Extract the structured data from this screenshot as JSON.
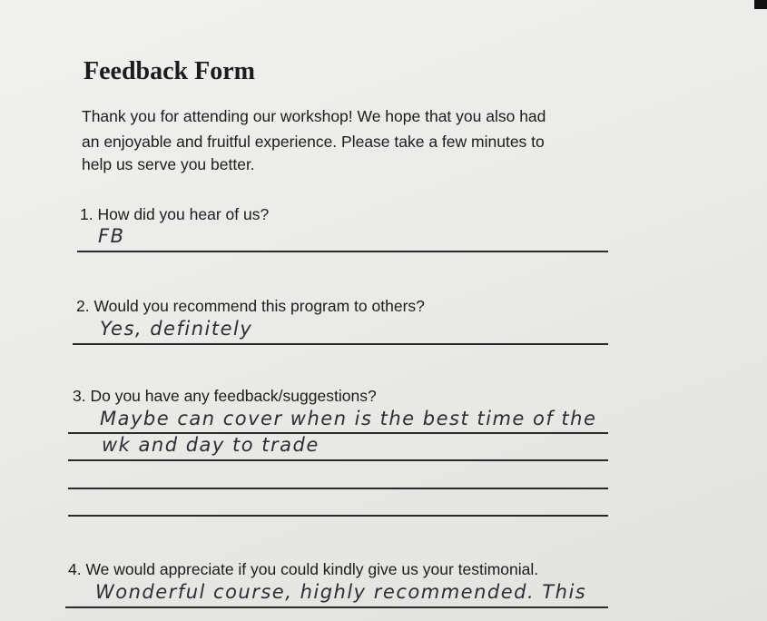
{
  "document": {
    "title": "Feedback Form",
    "intro": [
      "Thank you for attending our workshop! We hope that you also had",
      "an enjoyable and fruitful experience. Please take a few minutes to",
      "help us serve you better."
    ],
    "questions": [
      {
        "label": "1. How did you hear of us?",
        "answers": [
          "FB"
        ]
      },
      {
        "label": "2. Would you recommend this program to others?",
        "answers": [
          "Yes, definitely"
        ]
      },
      {
        "label": "3. Do you have any feedback/suggestions?",
        "answers": [
          "Maybe can cover when is the best time of the",
          "wk and day to trade"
        ]
      },
      {
        "label": "4. We would appreciate if you could kindly give us your testimonial.",
        "answers": [
          "Wonderful course, highly recommended. This"
        ]
      }
    ]
  }
}
